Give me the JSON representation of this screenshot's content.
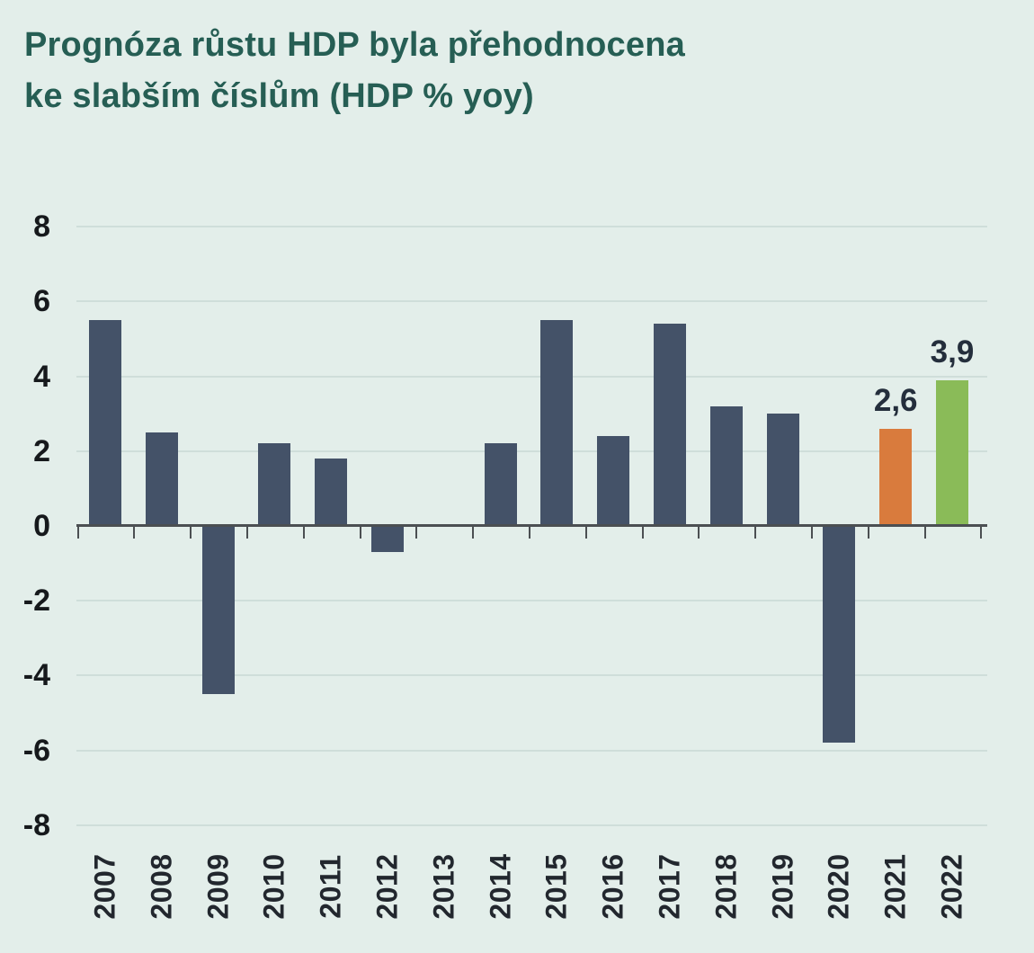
{
  "title": {
    "lines": [
      "Prognóza růstu HDP byla přehodnocena",
      "ke slabším číslům (HDP % yoy)"
    ],
    "color": "#265e54"
  },
  "chart_data": {
    "type": "bar",
    "title": "Prognóza růstu HDP byla přehodnocena ke slabším číslům (HDP % yoy)",
    "xlabel": "",
    "ylabel": "HDP % yoy",
    "ylim": [
      -8,
      8
    ],
    "yticks": [
      8,
      6,
      4,
      2,
      0,
      -2,
      -4,
      -6,
      -8
    ],
    "grid": "faint horizontal gridlines at every tick, solid dark zero axis with tick marks",
    "legend": "none",
    "categories": [
      "2007",
      "2008",
      "2009",
      "2010",
      "2011",
      "2012",
      "2013",
      "2014",
      "2015",
      "2016",
      "2017",
      "2018",
      "2019",
      "2020",
      "2021",
      "2022"
    ],
    "values": [
      5.5,
      2.5,
      -4.5,
      2.2,
      1.8,
      -0.7,
      0,
      2.2,
      5.5,
      2.4,
      5.4,
      3.2,
      3.0,
      -5.8,
      2.6,
      3.9
    ],
    "bar_colors": [
      "#445268",
      "#445268",
      "#445268",
      "#445268",
      "#445268",
      "#445268",
      "#445268",
      "#445268",
      "#445268",
      "#445268",
      "#445268",
      "#445268",
      "#445268",
      "#445268",
      "#d97b3d",
      "#8abb58"
    ],
    "data_labels": [
      null,
      null,
      null,
      null,
      null,
      null,
      null,
      null,
      null,
      null,
      null,
      null,
      null,
      null,
      "2,6",
      "3,9"
    ],
    "colors": {
      "background": "#e3eeea",
      "title": "#265e54",
      "bar_default": "#445268",
      "bar_forecast_2021": "#d97b3d",
      "bar_forecast_2022": "#8abb58",
      "axis": "#4b4f52",
      "gridline": "#cfdeda",
      "y_tick_label": "#16191c",
      "x_tick_label": "#22272e",
      "data_label": "#242e3c"
    }
  }
}
